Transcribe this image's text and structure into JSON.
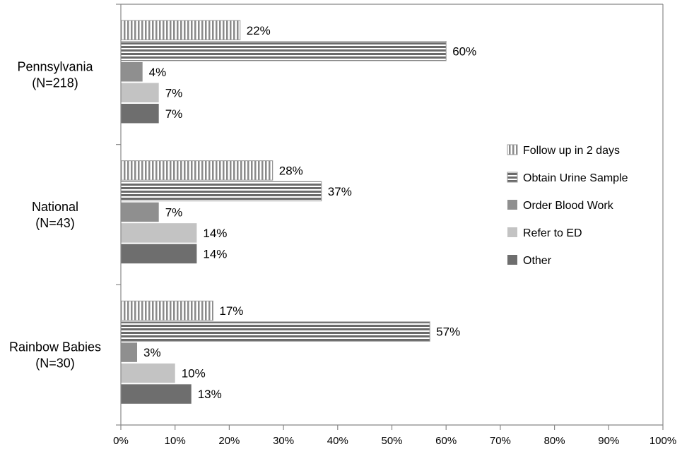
{
  "chart_data": {
    "type": "bar",
    "orientation": "horizontal",
    "title": "",
    "xlabel": "",
    "ylabel": "",
    "xlim": [
      0,
      100
    ],
    "x_ticks": [
      "0%",
      "10%",
      "20%",
      "30%",
      "40%",
      "50%",
      "60%",
      "70%",
      "80%",
      "90%",
      "100%"
    ],
    "grid": false,
    "legend_position": "right",
    "categories": [
      {
        "line1": "Pennsylvania",
        "line2": "(N=218)"
      },
      {
        "line1": "National",
        "line2": "(N=43)"
      },
      {
        "line1": "Rainbow Babies",
        "line2": "(N=30)"
      }
    ],
    "series": [
      {
        "name": "Follow up in 2 days",
        "pattern": "vertical-stripes",
        "color": "#b4b4b4",
        "values": [
          22,
          28,
          17
        ],
        "labels": [
          "22%",
          "28%",
          "17%"
        ]
      },
      {
        "name": "Obtain Urine Sample",
        "pattern": "horizontal-stripes",
        "color": "#737373",
        "values": [
          60,
          37,
          57
        ],
        "labels": [
          "60%",
          "37%",
          "57%"
        ]
      },
      {
        "name": "Order Blood Work",
        "pattern": "solid",
        "color": "#8f8f8f",
        "values": [
          4,
          7,
          3
        ],
        "labels": [
          "4%",
          "7%",
          "3%"
        ]
      },
      {
        "name": "Refer to ED",
        "pattern": "solid",
        "color": "#c3c3c3",
        "values": [
          7,
          14,
          10
        ],
        "labels": [
          "7%",
          "14%",
          "10%"
        ]
      },
      {
        "name": "Other",
        "pattern": "solid",
        "color": "#6e6e6e",
        "values": [
          7,
          14,
          13
        ],
        "labels": [
          "7%",
          "14%",
          "13%"
        ]
      }
    ]
  }
}
